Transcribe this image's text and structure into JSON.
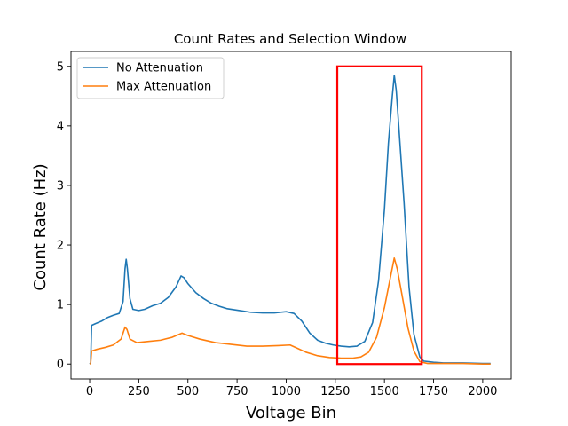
{
  "chart_data": {
    "type": "line",
    "title": "Count Rates and Selection Window",
    "xlabel": "Voltage Bin",
    "ylabel": "Count Rate (Hz)",
    "xlim": [
      -95,
      2145
    ],
    "ylim": [
      -0.25,
      5.25
    ],
    "xticks": [
      0,
      250,
      500,
      750,
      1000,
      1250,
      1500,
      1750,
      2000
    ],
    "yticks": [
      0,
      1,
      2,
      3,
      4,
      5
    ],
    "grid": false,
    "legend_position": "top-left",
    "series": [
      {
        "name": "No Attenuation",
        "color": "#1f77b4",
        "points": [
          [
            0,
            0
          ],
          [
            5,
            0.02
          ],
          [
            10,
            0.65
          ],
          [
            30,
            0.68
          ],
          [
            60,
            0.72
          ],
          [
            90,
            0.78
          ],
          [
            120,
            0.82
          ],
          [
            150,
            0.85
          ],
          [
            170,
            1.05
          ],
          [
            180,
            1.6
          ],
          [
            186,
            1.76
          ],
          [
            192,
            1.6
          ],
          [
            205,
            1.1
          ],
          [
            220,
            0.92
          ],
          [
            250,
            0.9
          ],
          [
            280,
            0.92
          ],
          [
            320,
            0.98
          ],
          [
            360,
            1.02
          ],
          [
            400,
            1.12
          ],
          [
            440,
            1.3
          ],
          [
            465,
            1.48
          ],
          [
            480,
            1.45
          ],
          [
            500,
            1.35
          ],
          [
            540,
            1.2
          ],
          [
            580,
            1.1
          ],
          [
            620,
            1.02
          ],
          [
            660,
            0.97
          ],
          [
            700,
            0.93
          ],
          [
            760,
            0.9
          ],
          [
            820,
            0.87
          ],
          [
            880,
            0.86
          ],
          [
            940,
            0.86
          ],
          [
            1000,
            0.88
          ],
          [
            1040,
            0.85
          ],
          [
            1080,
            0.72
          ],
          [
            1120,
            0.52
          ],
          [
            1160,
            0.4
          ],
          [
            1200,
            0.35
          ],
          [
            1240,
            0.32
          ],
          [
            1280,
            0.3
          ],
          [
            1320,
            0.29
          ],
          [
            1360,
            0.3
          ],
          [
            1400,
            0.38
          ],
          [
            1440,
            0.7
          ],
          [
            1470,
            1.4
          ],
          [
            1500,
            2.6
          ],
          [
            1520,
            3.7
          ],
          [
            1540,
            4.5
          ],
          [
            1550,
            4.85
          ],
          [
            1560,
            4.6
          ],
          [
            1575,
            3.9
          ],
          [
            1600,
            2.7
          ],
          [
            1625,
            1.3
          ],
          [
            1650,
            0.5
          ],
          [
            1680,
            0.12
          ],
          [
            1700,
            0.05
          ],
          [
            1750,
            0.03
          ],
          [
            1800,
            0.02
          ],
          [
            1900,
            0.02
          ],
          [
            2000,
            0.01
          ],
          [
            2040,
            0.01
          ]
        ]
      },
      {
        "name": "Max Attenuation",
        "color": "#ff7f0e",
        "points": [
          [
            0,
            0
          ],
          [
            5,
            0.01
          ],
          [
            10,
            0.22
          ],
          [
            40,
            0.25
          ],
          [
            80,
            0.28
          ],
          [
            120,
            0.32
          ],
          [
            160,
            0.42
          ],
          [
            180,
            0.62
          ],
          [
            190,
            0.58
          ],
          [
            205,
            0.42
          ],
          [
            240,
            0.36
          ],
          [
            300,
            0.38
          ],
          [
            360,
            0.4
          ],
          [
            420,
            0.45
          ],
          [
            470,
            0.52
          ],
          [
            500,
            0.48
          ],
          [
            560,
            0.42
          ],
          [
            640,
            0.36
          ],
          [
            720,
            0.33
          ],
          [
            800,
            0.3
          ],
          [
            880,
            0.3
          ],
          [
            960,
            0.31
          ],
          [
            1020,
            0.32
          ],
          [
            1060,
            0.26
          ],
          [
            1100,
            0.2
          ],
          [
            1160,
            0.14
          ],
          [
            1220,
            0.11
          ],
          [
            1280,
            0.1
          ],
          [
            1340,
            0.1
          ],
          [
            1380,
            0.12
          ],
          [
            1420,
            0.2
          ],
          [
            1460,
            0.45
          ],
          [
            1500,
            0.95
          ],
          [
            1530,
            1.45
          ],
          [
            1550,
            1.78
          ],
          [
            1565,
            1.6
          ],
          [
            1590,
            1.15
          ],
          [
            1620,
            0.6
          ],
          [
            1650,
            0.22
          ],
          [
            1680,
            0.04
          ],
          [
            1720,
            0.01
          ],
          [
            1800,
            0.01
          ],
          [
            1900,
            0.01
          ],
          [
            2000,
            0.0
          ],
          [
            2040,
            0.0
          ]
        ]
      }
    ],
    "selection_window": {
      "x0": 1260,
      "x1": 1690,
      "y0": 0,
      "y1": 5,
      "color": "#ff0000"
    }
  }
}
